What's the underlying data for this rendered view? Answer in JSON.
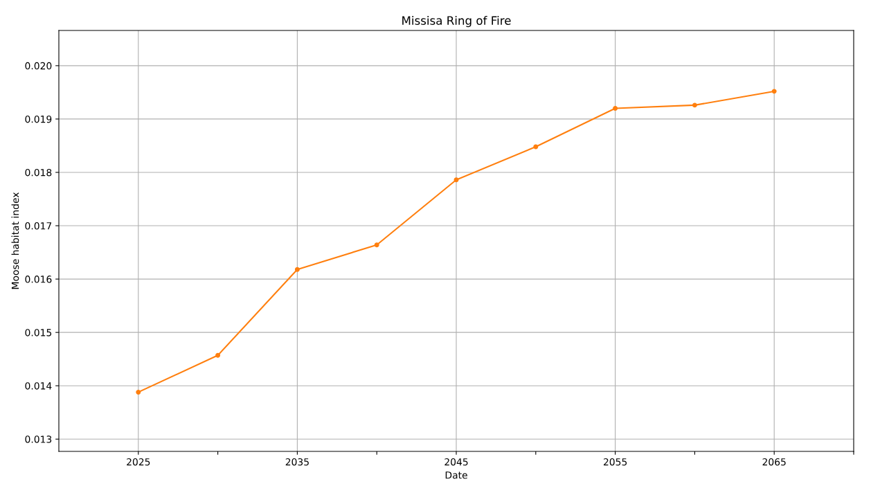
{
  "chart_data": {
    "type": "line",
    "title": "Missisa Ring of Fire",
    "xlabel": "Date",
    "ylabel": "Moose habitat index",
    "x": [
      2025,
      2030,
      2035,
      2040,
      2045,
      2050,
      2055,
      2060,
      2065
    ],
    "series": [
      {
        "color": "#ff7f0e",
        "values": [
          0.01388,
          0.01457,
          0.01618,
          0.01664,
          0.01786,
          0.01848,
          0.0192,
          0.01926,
          0.01952
        ]
      }
    ],
    "xlim": [
      2020,
      2070
    ],
    "xticks": [
      2025,
      {
        "value": 2030,
        "label": null
      },
      2035,
      {
        "value": 2040,
        "label": null
      },
      2045,
      {
        "value": 2050,
        "label": null
      },
      2055,
      {
        "value": 2060,
        "label": null
      },
      2065,
      {
        "value": 2070,
        "label": null
      }
    ],
    "ylim": [
      0.01277,
      0.02066
    ],
    "yticks": [
      {
        "value": 0.013,
        "label": "0.013"
      },
      {
        "value": 0.014,
        "label": "0.014"
      },
      {
        "value": 0.015,
        "label": "0.015"
      },
      {
        "value": 0.016,
        "label": "0.016"
      },
      {
        "value": 0.017,
        "label": "0.017"
      },
      {
        "value": 0.018,
        "label": "0.018"
      },
      {
        "value": 0.019,
        "label": "0.019"
      },
      {
        "value": 0.02,
        "label": "0.020"
      }
    ],
    "grid": true,
    "marker": "circle",
    "line_style": "solid"
  }
}
